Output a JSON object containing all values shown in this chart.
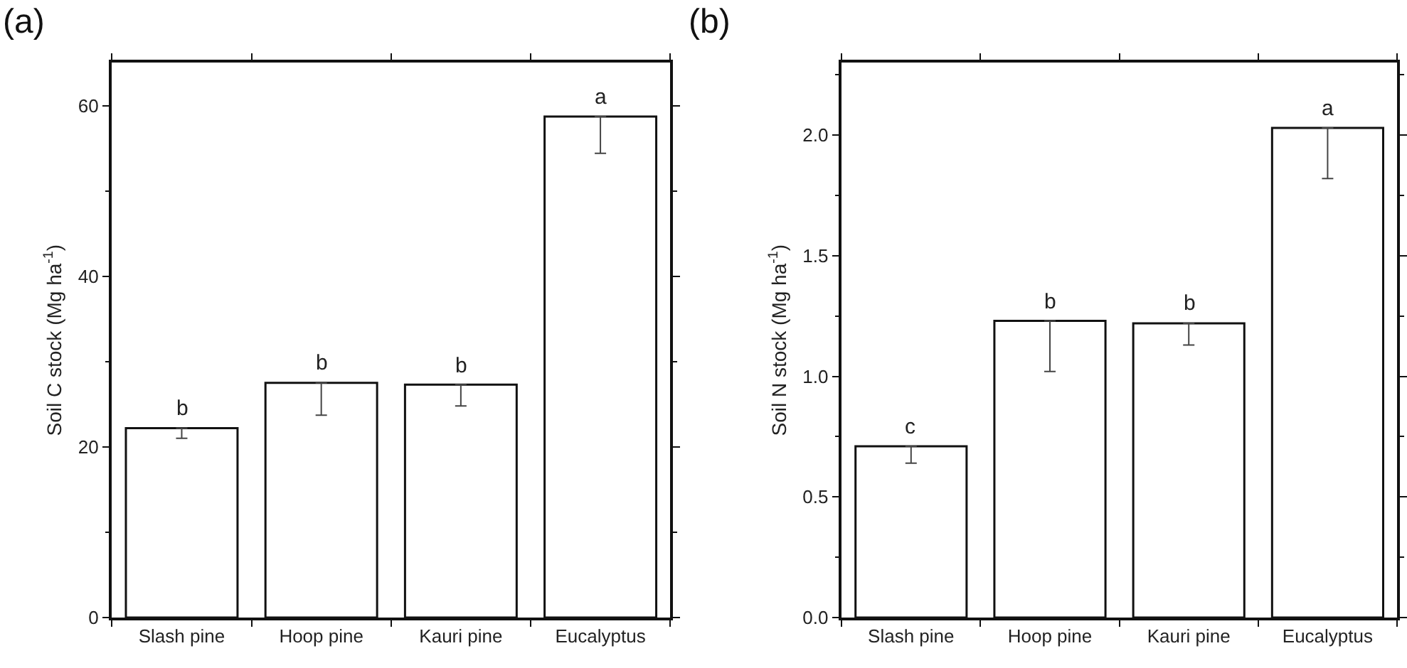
{
  "chart_data": [
    {
      "type": "bar",
      "title": "(a)",
      "ylabel": "Soil C stock (Mg ha$^{-1}$)",
      "categories": [
        "Slash pine",
        "Hoop pine",
        "Kauri pine",
        "Eucalyptus"
      ],
      "values": [
        22.2,
        27.5,
        27.3,
        58.7
      ],
      "errors": [
        [
          21.0,
          22.2
        ],
        [
          23.7,
          27.5
        ],
        [
          24.8,
          27.3
        ],
        [
          54.4,
          58.7
        ]
      ],
      "color": "#ffffff",
      "ylim": [
        0,
        65
      ],
      "yticks": [
        0,
        20,
        40,
        60
      ],
      "annotations": [
        {
          "text": "b",
          "x": "Slash pine",
          "y": 22.2
        },
        {
          "text": "b",
          "x": "Hoop pine",
          "y": 27.5
        },
        {
          "text": "b",
          "x": "Kauri pine",
          "y": 27.3
        },
        {
          "text": "a",
          "x": "Eucalyptus",
          "y": 58.7
        }
      ]
    },
    {
      "type": "bar",
      "title": "(b)",
      "ylabel": "Soil N stock (Mg ha$^{-1}$)",
      "categories": [
        "Slash pine",
        "Hoop pine",
        "Kauri pine",
        "Eucalyptus"
      ],
      "values": [
        0.71,
        1.23,
        1.22,
        2.03
      ],
      "errors": [
        [
          0.64,
          0.71
        ],
        [
          1.02,
          1.23
        ],
        [
          1.13,
          1.22
        ],
        [
          1.82,
          2.03
        ]
      ],
      "color": "#ffffff",
      "ylim": [
        0,
        2.3
      ],
      "yticks": [
        {
          "value": 0,
          "label": "0.0"
        },
        0.5,
        {
          "value": 1,
          "label": "1.0"
        },
        1.5,
        {
          "value": 2,
          "label": "2.0"
        }
      ],
      "annotations": [
        {
          "text": "c",
          "x": "Slash pine",
          "y": 0.71
        },
        {
          "text": "b",
          "x": "Hoop pine",
          "y": 1.23
        },
        {
          "text": "b",
          "x": "Kauri pine",
          "y": 1.22
        },
        {
          "text": "a",
          "x": "Eucalyptus",
          "y": 2.03
        }
      ]
    }
  ]
}
